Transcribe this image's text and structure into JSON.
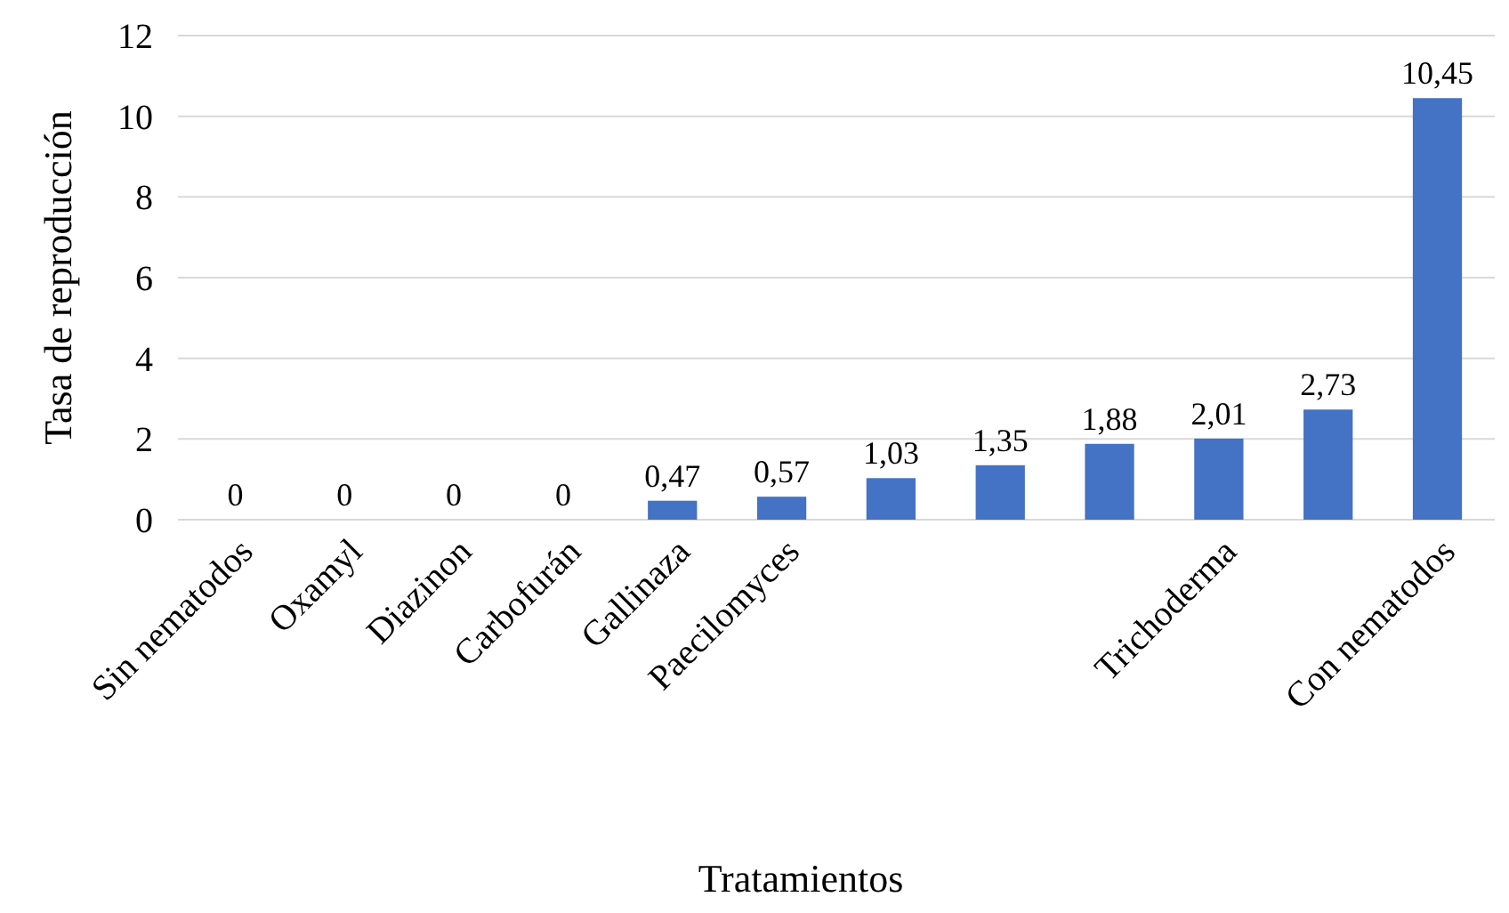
{
  "chart_data": {
    "type": "bar",
    "xlabel": "Tratamientos",
    "ylabel": "Tasa de reproducción",
    "categories": [
      "Sin nematodos",
      "Oxamyl",
      "Diazinon",
      "Carbofurán",
      "Gallinaza",
      "Paecilomyces",
      null,
      null,
      null,
      "Trichoderma",
      null,
      "Con nematodos"
    ],
    "values": [
      0,
      0,
      0,
      0,
      0.47,
      0.57,
      1.03,
      1.35,
      1.88,
      2.01,
      2.73,
      10.45
    ],
    "value_labels": [
      "0",
      "0",
      "0",
      "0",
      "0,47",
      "0,57",
      "1,03",
      "1,35",
      "1,88",
      "2,01",
      "2,73",
      "10,45"
    ],
    "color": "#4472c4",
    "ylim": [
      0,
      12
    ],
    "yticks": [
      0,
      2,
      4,
      6,
      8,
      10,
      12
    ],
    "grid": "y"
  }
}
